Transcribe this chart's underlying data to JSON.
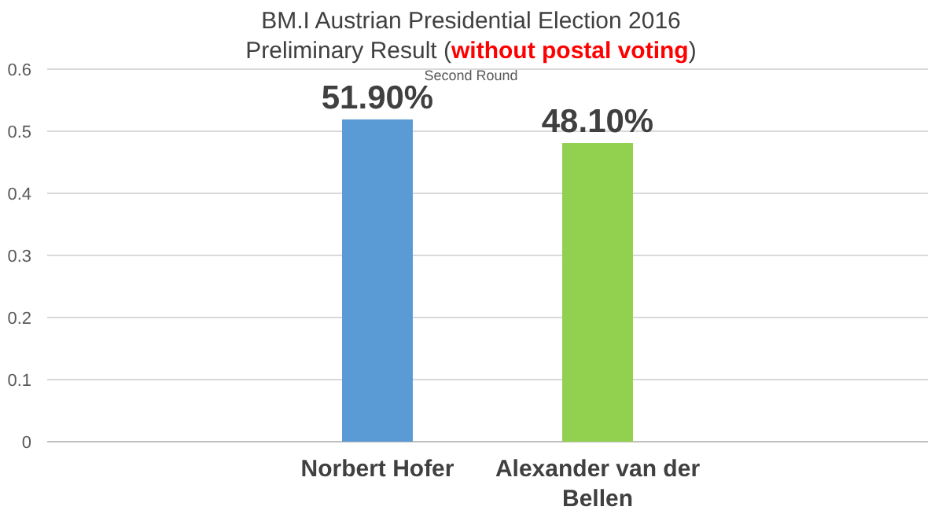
{
  "chart_data": {
    "type": "bar",
    "title": "BM.I Austrian Presidential Election 2016",
    "subtitle": "Preliminary Result (without postal voting)",
    "annotations": [
      "Second Round"
    ],
    "categories": [
      "Norbert Hofer",
      "Alexander van der Bellen"
    ],
    "values": [
      0.519,
      0.481
    ],
    "colors": [
      "#5b9bd5",
      "#92d050"
    ],
    "value_labels": [
      "51.90%",
      "48.10%"
    ],
    "ylim": [
      0,
      0.6
    ],
    "yticks": [
      0,
      0.1,
      0.2,
      0.3,
      0.4,
      0.5,
      0.6
    ],
    "grid": "y"
  }
}
